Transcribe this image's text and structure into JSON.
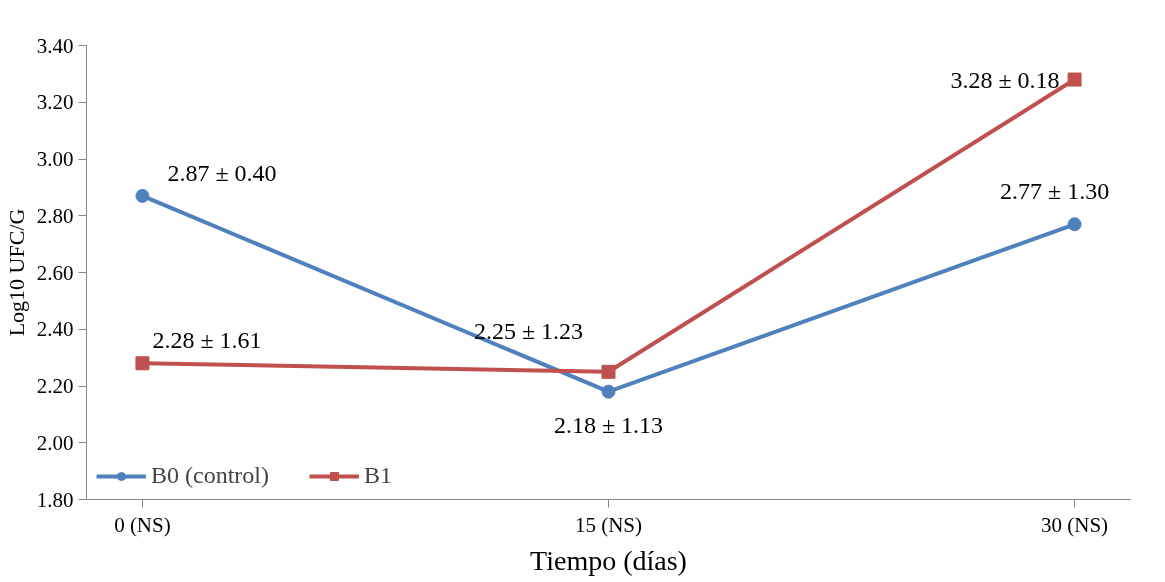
{
  "chart_data": {
    "type": "line",
    "xlabel": "Tiempo (días)",
    "ylabel": "Log10 UFC/G",
    "categories": [
      "0 (NS)",
      "15 (NS)",
      "30 (NS)"
    ],
    "series": [
      {
        "name": "B0 (control)",
        "color": "#4f81bd",
        "marker": "circle",
        "values": [
          2.87,
          2.18,
          2.77
        ],
        "value_labels": [
          "2.87 ± 0.40",
          "2.18 ± 1.13",
          "2.77 ± 1.30"
        ]
      },
      {
        "name": "B1",
        "color": "#c0504d",
        "marker": "square",
        "values": [
          2.28,
          2.25,
          3.28
        ],
        "value_labels": [
          "2.28 ± 1.61",
          "2.25 ± 1.23",
          "3.28 ± 0.18"
        ]
      }
    ],
    "ylim": [
      1.8,
      3.4
    ],
    "yticks": [
      {
        "value": 1.8,
        "label": "1.80"
      },
      {
        "value": 2.0,
        "label": "2.00"
      },
      {
        "value": 2.2,
        "label": "2.20"
      },
      {
        "value": 2.4,
        "label": "2.40"
      },
      {
        "value": 2.6,
        "label": "2.60"
      },
      {
        "value": 2.8,
        "label": "2.80"
      },
      {
        "value": 3.0,
        "label": "3.00"
      },
      {
        "value": 3.2,
        "label": "3.20"
      },
      {
        "value": 3.4,
        "label": "3.40"
      }
    ],
    "grid": false,
    "legend": "bottom left",
    "line_style": "solid"
  }
}
